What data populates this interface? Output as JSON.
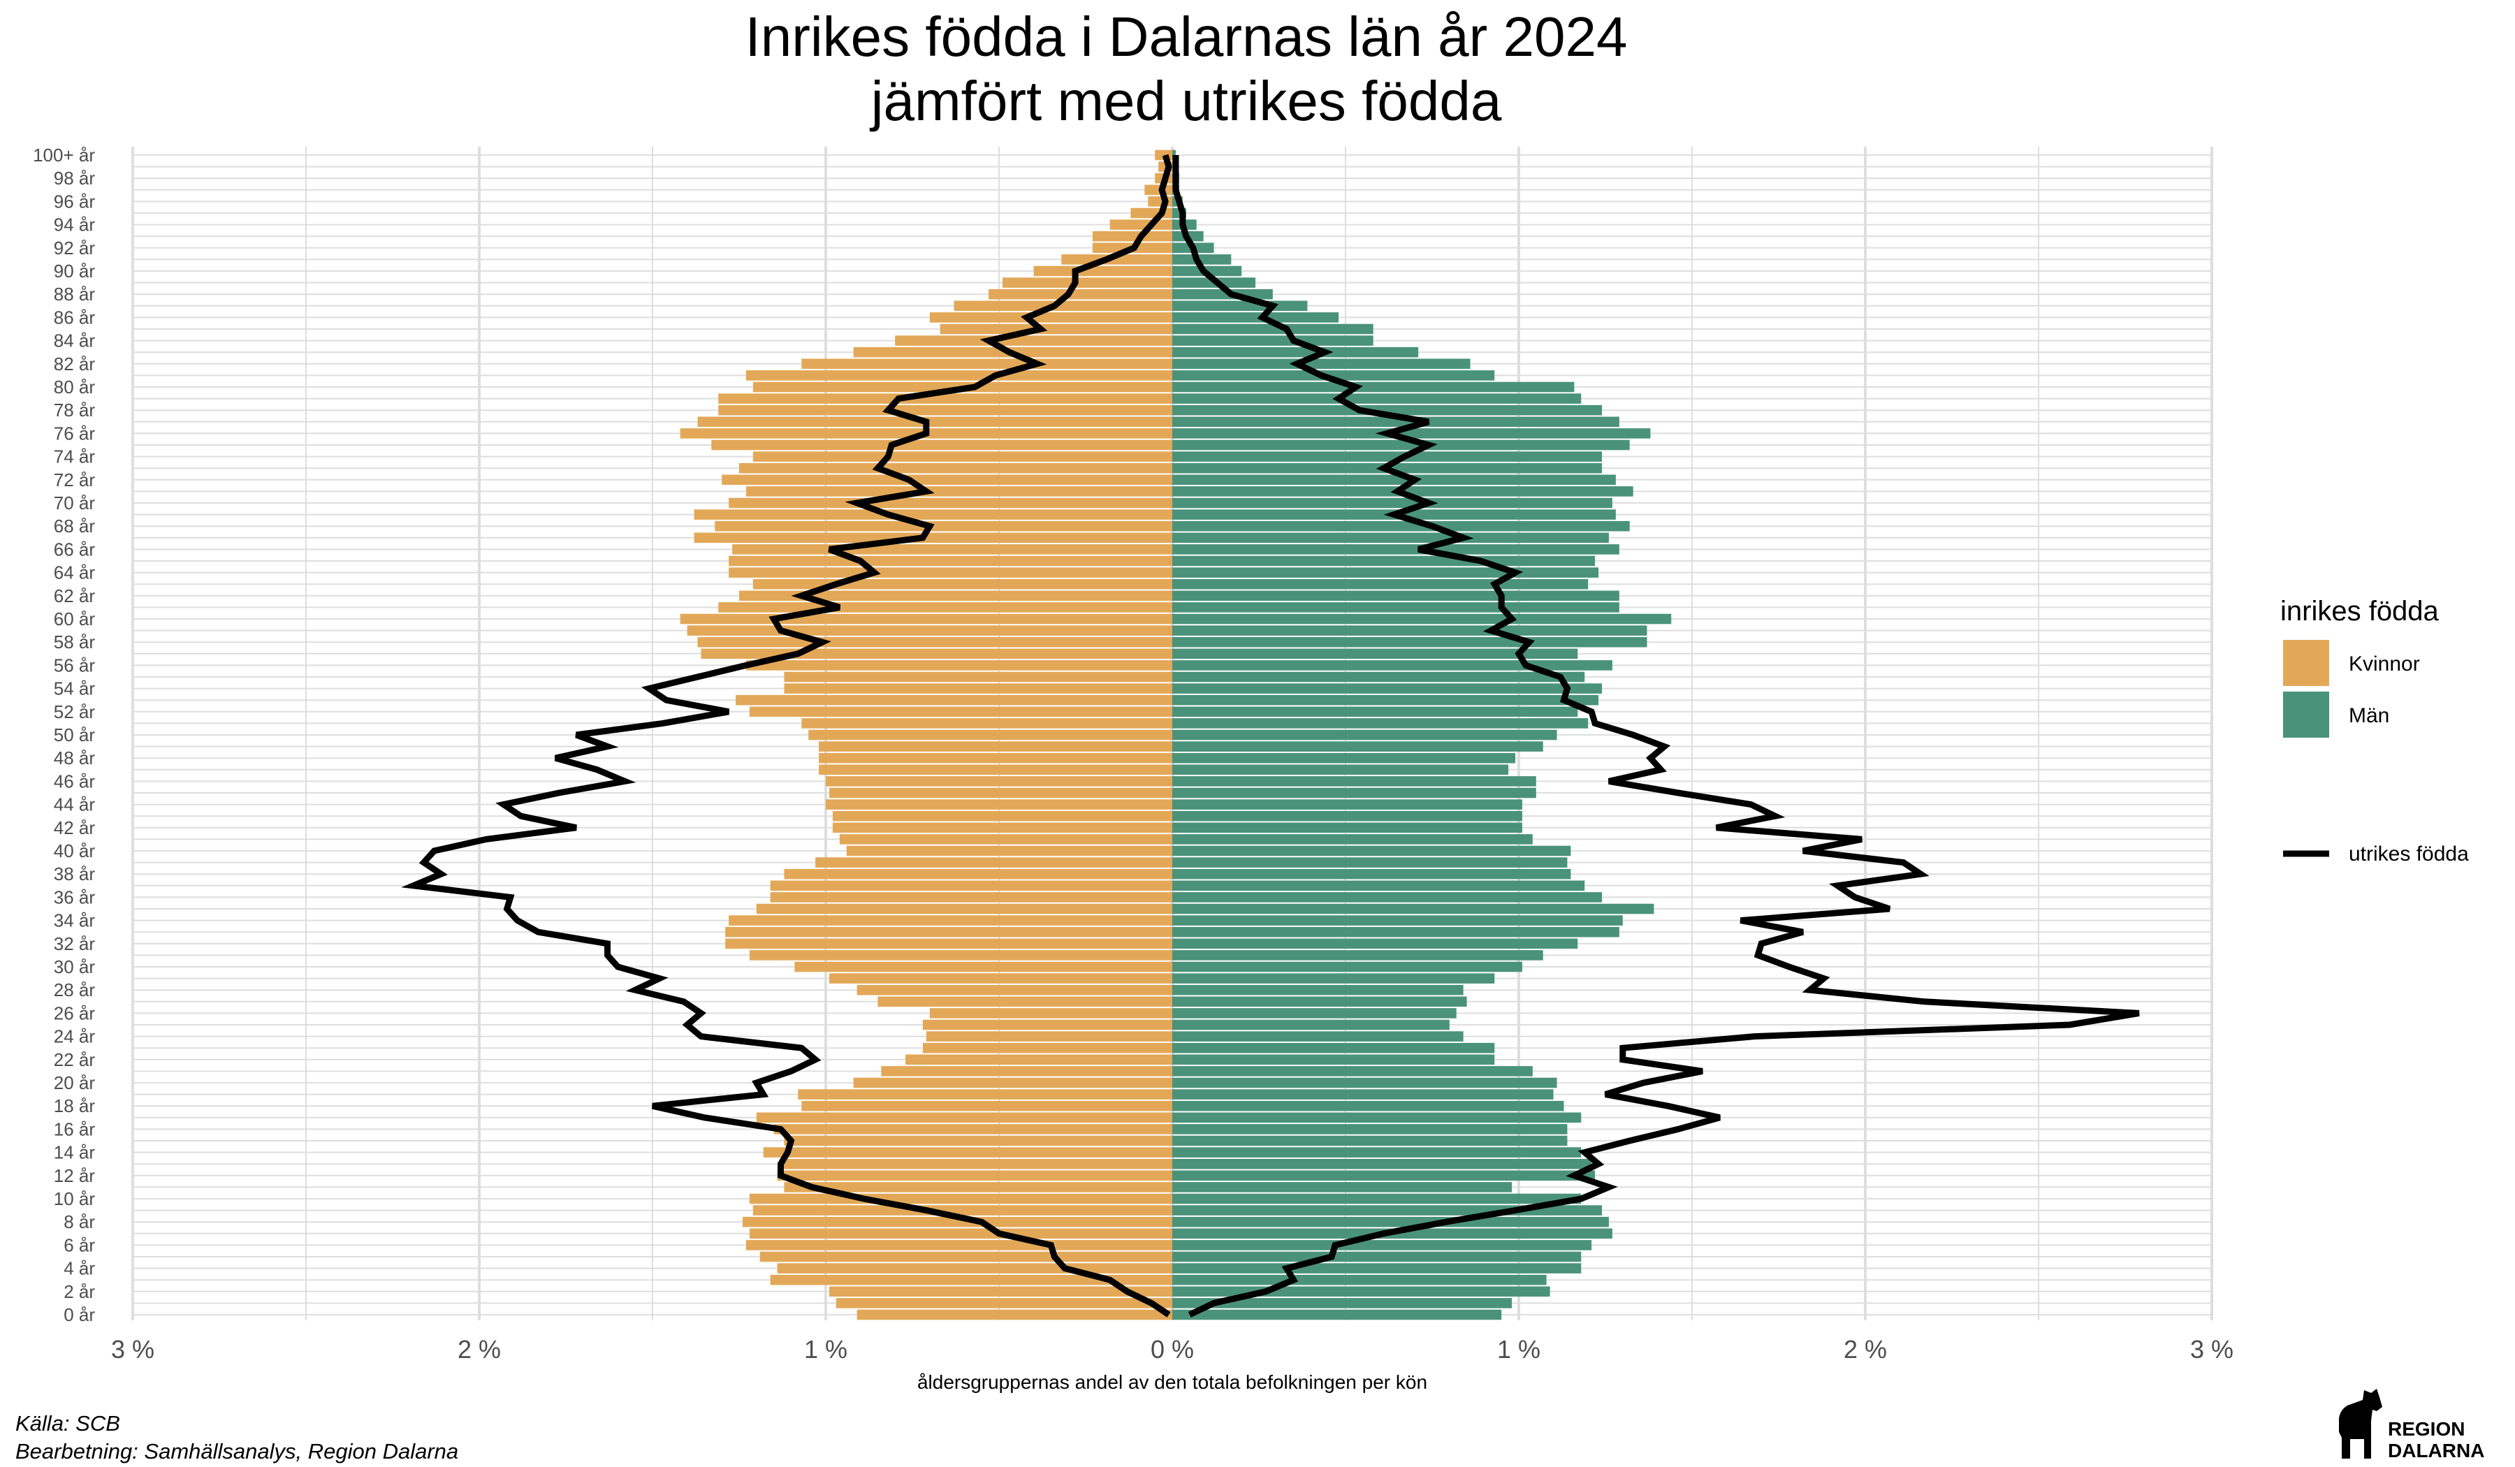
{
  "chart_data": {
    "type": "bar",
    "title": [
      "Inrikes födda i Dalarnas län år 2024",
      "jämfört med utrikes födda"
    ],
    "xlabel": "åldersgruppernas andel av den totala befolkningen per kön",
    "x_ticks": [
      "3 %",
      "2 %",
      "1 %",
      "0 %",
      "1 %",
      "2 %",
      "3 %"
    ],
    "x_tick_values": [
      -3,
      -2,
      -1,
      0,
      1,
      2,
      3
    ],
    "xlim": [
      -3,
      3
    ],
    "grid": true,
    "ages": [
      0,
      1,
      2,
      3,
      4,
      5,
      6,
      7,
      8,
      9,
      10,
      11,
      12,
      13,
      14,
      15,
      16,
      17,
      18,
      19,
      20,
      21,
      22,
      23,
      24,
      25,
      26,
      27,
      28,
      29,
      30,
      31,
      32,
      33,
      34,
      35,
      36,
      37,
      38,
      39,
      40,
      41,
      42,
      43,
      44,
      45,
      46,
      47,
      48,
      49,
      50,
      51,
      52,
      53,
      54,
      55,
      56,
      57,
      58,
      59,
      60,
      61,
      62,
      63,
      64,
      65,
      66,
      67,
      68,
      69,
      70,
      71,
      72,
      73,
      74,
      75,
      76,
      77,
      78,
      79,
      80,
      81,
      82,
      83,
      84,
      85,
      86,
      87,
      88,
      89,
      90,
      91,
      92,
      93,
      94,
      95,
      96,
      97,
      98,
      99,
      100
    ],
    "age_labels": [
      "0 år",
      "2 år",
      "4 år",
      "6 år",
      "8 år",
      "10 år",
      "12 år",
      "14 år",
      "16 år",
      "18 år",
      "20 år",
      "22 år",
      "24 år",
      "26 år",
      "28 år",
      "30 år",
      "32 år",
      "34 år",
      "36 år",
      "38 år",
      "40 år",
      "42 år",
      "44 år",
      "46 år",
      "48 år",
      "50 år",
      "52 år",
      "54 år",
      "56 år",
      "58 år",
      "60 år",
      "62 år",
      "64 år",
      "66 år",
      "68 år",
      "70 år",
      "72 år",
      "74 år",
      "76 år",
      "78 år",
      "80 år",
      "82 år",
      "84 år",
      "86 år",
      "88 år",
      "90 år",
      "92 år",
      "94 år",
      "96 år",
      "98 år",
      "100+ år"
    ],
    "legend_title": "inrikes födda",
    "legend_position": "right",
    "series": [
      {
        "name": "Kvinnor",
        "color": "#E3A857",
        "values": [
          0.91,
          0.97,
          0.99,
          1.16,
          1.14,
          1.19,
          1.23,
          1.22,
          1.24,
          1.21,
          1.22,
          1.12,
          1.14,
          1.13,
          1.18,
          1.12,
          1.15,
          1.2,
          1.07,
          1.08,
          0.92,
          0.84,
          0.77,
          0.72,
          0.71,
          0.72,
          0.7,
          0.85,
          0.91,
          0.99,
          1.09,
          1.22,
          1.29,
          1.29,
          1.28,
          1.2,
          1.16,
          1.16,
          1.12,
          1.03,
          0.94,
          0.96,
          0.98,
          0.98,
          1.0,
          0.99,
          1.0,
          1.02,
          1.02,
          1.02,
          1.05,
          1.07,
          1.22,
          1.26,
          1.12,
          1.12,
          1.23,
          1.36,
          1.37,
          1.4,
          1.42,
          1.31,
          1.25,
          1.21,
          1.28,
          1.28,
          1.27,
          1.38,
          1.32,
          1.38,
          1.28,
          1.23,
          1.3,
          1.25,
          1.21,
          1.33,
          1.42,
          1.37,
          1.31,
          1.31,
          1.21,
          1.23,
          1.07,
          0.92,
          0.8,
          0.67,
          0.7,
          0.63,
          0.53,
          0.49,
          0.4,
          0.32,
          0.23,
          0.23,
          0.18,
          0.12,
          0.07,
          0.08,
          0.05,
          0.04,
          0.05
        ]
      },
      {
        "name": "Män",
        "color": "#4A937A",
        "values": [
          0.95,
          0.98,
          1.09,
          1.08,
          1.18,
          1.18,
          1.21,
          1.27,
          1.26,
          1.24,
          1.18,
          0.98,
          1.22,
          1.21,
          1.18,
          1.14,
          1.14,
          1.18,
          1.13,
          1.1,
          1.11,
          1.04,
          0.93,
          0.93,
          0.84,
          0.8,
          0.82,
          0.85,
          0.84,
          0.93,
          1.01,
          1.07,
          1.17,
          1.29,
          1.3,
          1.39,
          1.24,
          1.19,
          1.15,
          1.14,
          1.15,
          1.04,
          1.01,
          1.01,
          1.01,
          1.05,
          1.05,
          0.97,
          0.99,
          1.07,
          1.11,
          1.2,
          1.17,
          1.23,
          1.24,
          1.19,
          1.27,
          1.17,
          1.37,
          1.37,
          1.44,
          1.29,
          1.29,
          1.2,
          1.23,
          1.22,
          1.29,
          1.26,
          1.32,
          1.28,
          1.27,
          1.33,
          1.28,
          1.24,
          1.24,
          1.32,
          1.38,
          1.29,
          1.24,
          1.18,
          1.16,
          0.93,
          0.86,
          0.71,
          0.58,
          0.58,
          0.48,
          0.39,
          0.29,
          0.24,
          0.2,
          0.17,
          0.12,
          0.09,
          0.07,
          0.04,
          0.03,
          0.02,
          0.02,
          0.01,
          0.01
        ]
      },
      {
        "name": "utrikes födda",
        "color": "#000000",
        "female": [
          0.01,
          0.06,
          0.13,
          0.18,
          0.31,
          0.34,
          0.35,
          0.5,
          0.55,
          0.71,
          0.89,
          1.04,
          1.13,
          1.13,
          1.11,
          1.1,
          1.13,
          1.35,
          1.5,
          1.18,
          1.2,
          1.1,
          1.03,
          1.07,
          1.36,
          1.4,
          1.36,
          1.41,
          1.55,
          1.48,
          1.6,
          1.63,
          1.63,
          1.83,
          1.89,
          1.92,
          1.91,
          2.19,
          2.11,
          2.16,
          2.13,
          1.98,
          1.72,
          1.88,
          1.93,
          1.77,
          1.58,
          1.66,
          1.78,
          1.63,
          1.72,
          1.47,
          1.28,
          1.46,
          1.51,
          1.37,
          1.23,
          1.08,
          1.01,
          1.13,
          1.15,
          0.96,
          1.07,
          0.97,
          0.86,
          0.9,
          0.99,
          0.72,
          0.7,
          0.82,
          0.91,
          0.71,
          0.76,
          0.85,
          0.82,
          0.81,
          0.71,
          0.71,
          0.82,
          0.79,
          0.57,
          0.51,
          0.39,
          0.47,
          0.53,
          0.38,
          0.42,
          0.34,
          0.3,
          0.28,
          0.28,
          0.19,
          0.11,
          0.09,
          0.06,
          0.03,
          0.02,
          0.03,
          0.02,
          0.01,
          0.02
        ],
        "male": [
          0.05,
          0.12,
          0.27,
          0.35,
          0.33,
          0.46,
          0.47,
          0.61,
          0.79,
          0.99,
          1.18,
          1.26,
          1.16,
          1.23,
          1.19,
          1.32,
          1.46,
          1.58,
          1.43,
          1.25,
          1.36,
          1.53,
          1.3,
          1.3,
          1.68,
          2.59,
          2.79,
          2.17,
          1.84,
          1.88,
          1.78,
          1.69,
          1.7,
          1.82,
          1.64,
          2.07,
          1.97,
          1.92,
          2.16,
          2.11,
          1.82,
          1.99,
          1.57,
          1.74,
          1.67,
          1.46,
          1.26,
          1.41,
          1.38,
          1.42,
          1.33,
          1.22,
          1.21,
          1.13,
          1.14,
          1.12,
          1.02,
          1.0,
          1.03,
          0.92,
          0.98,
          0.95,
          0.95,
          0.93,
          0.99,
          0.89,
          0.71,
          0.84,
          0.75,
          0.64,
          0.74,
          0.65,
          0.7,
          0.61,
          0.67,
          0.74,
          0.62,
          0.74,
          0.54,
          0.48,
          0.53,
          0.43,
          0.36,
          0.44,
          0.35,
          0.33,
          0.26,
          0.29,
          0.17,
          0.13,
          0.09,
          0.07,
          0.06,
          0.04,
          0.03,
          0.03,
          0.02,
          0.01,
          0.01,
          0.01,
          0.01
        ]
      }
    ],
    "legend_entries": [
      "Kvinnor",
      "Män",
      "utrikes födda"
    ]
  },
  "caption": {
    "source": "Källa: SCB",
    "processing": "Bearbetning: Samhällsanalys, Region Dalarna"
  },
  "logo": {
    "line1": "REGION",
    "line2": "DALARNA"
  }
}
